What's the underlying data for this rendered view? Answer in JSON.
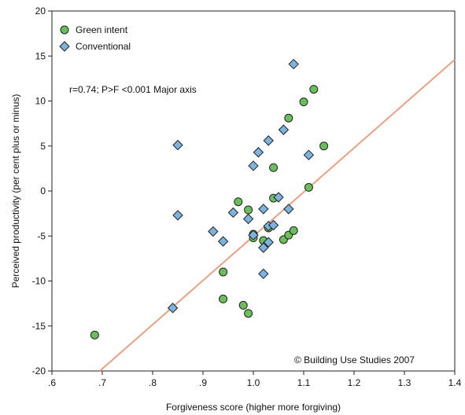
{
  "chart_data": {
    "type": "scatter",
    "xlabel": "Forgiveness score (higher more forgiving)",
    "ylabel": "Perceived productivity (per cent plus or minus)",
    "xlim": [
      0.6,
      1.4
    ],
    "ylim": [
      -20,
      20
    ],
    "x_ticks": [
      0.6,
      0.7,
      0.8,
      0.9,
      1.0,
      1.1,
      1.2,
      1.3,
      1.4
    ],
    "x_tick_labels": [
      ".6",
      ".7",
      ".8",
      ".9",
      "1.0",
      "1.1",
      "1.2",
      "1.3",
      "1.4"
    ],
    "y_ticks": [
      -20,
      -15,
      -10,
      -5,
      0,
      5,
      10,
      15,
      20
    ],
    "y_tick_labels": [
      "-20",
      "-15",
      "-10",
      "-5",
      "0",
      "5",
      "10",
      "15",
      "20"
    ],
    "grid": false,
    "legend_position": "top-left",
    "annotation": "r=0.74; P>F <0.001 Major axis",
    "credit": "© Building Use Studies 2007",
    "fit_line": {
      "color": "#e8a083",
      "points": [
        [
          0.695,
          -20
        ],
        [
          1.4,
          14.6
        ]
      ]
    },
    "series": [
      {
        "name": "Green intent",
        "marker": "circle",
        "color": "#6abf5c",
        "points": [
          [
            0.685,
            -16
          ],
          [
            0.94,
            -12
          ],
          [
            0.94,
            -9
          ],
          [
            0.97,
            -1.2
          ],
          [
            0.98,
            -12.7
          ],
          [
            0.99,
            -13.6
          ],
          [
            0.99,
            -2.1
          ],
          [
            1.0,
            -5.2
          ],
          [
            1.0,
            -4.8
          ],
          [
            1.02,
            -5.5
          ],
          [
            1.03,
            -4.1
          ],
          [
            1.04,
            2.6
          ],
          [
            1.04,
            -0.8
          ],
          [
            1.06,
            -5.4
          ],
          [
            1.07,
            -4.9
          ],
          [
            1.07,
            8.1
          ],
          [
            1.08,
            -4.4
          ],
          [
            1.1,
            9.9
          ],
          [
            1.11,
            0.4
          ],
          [
            1.12,
            11.3
          ],
          [
            1.14,
            5.0
          ]
        ]
      },
      {
        "name": "Conventional",
        "marker": "diamond",
        "color": "#7cb4dd",
        "points": [
          [
            0.84,
            -13
          ],
          [
            0.85,
            5.1
          ],
          [
            0.85,
            -2.7
          ],
          [
            0.92,
            -4.5
          ],
          [
            0.94,
            -5.6
          ],
          [
            0.96,
            -2.4
          ],
          [
            0.99,
            -3.1
          ],
          [
            1.0,
            2.8
          ],
          [
            1.0,
            -4.9
          ],
          [
            1.01,
            4.3
          ],
          [
            1.02,
            -2.0
          ],
          [
            1.02,
            -6.3
          ],
          [
            1.02,
            -9.2
          ],
          [
            1.03,
            5.6
          ],
          [
            1.03,
            -3.9
          ],
          [
            1.03,
            -5.7
          ],
          [
            1.04,
            -3.8
          ],
          [
            1.05,
            -0.7
          ],
          [
            1.06,
            6.8
          ],
          [
            1.07,
            -2.0
          ],
          [
            1.08,
            14.1
          ],
          [
            1.11,
            4.0
          ]
        ]
      }
    ]
  }
}
